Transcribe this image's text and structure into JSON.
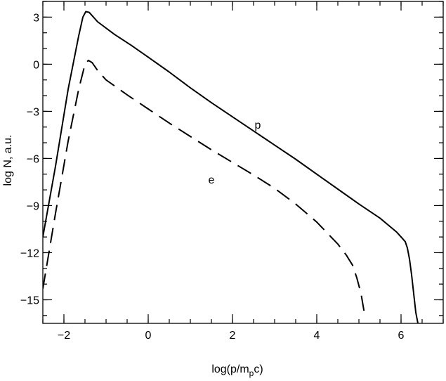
{
  "chart_data": {
    "type": "line",
    "title": "",
    "xlabel": "log(p/m",
    "xlabel_sub": "p",
    "xlabel_tail": "c)",
    "ylabel": "log N,  a.u.",
    "xlim": [
      -2.5,
      7.0
    ],
    "ylim": [
      -16.5,
      4.0
    ],
    "x_ticks": [
      -2,
      0,
      2,
      4,
      6
    ],
    "x_tick_labels": [
      "−2",
      "0",
      "2",
      "4",
      "6"
    ],
    "y_ticks": [
      3,
      0,
      -3,
      -6,
      -9,
      -12,
      -15
    ],
    "y_tick_labels": [
      "3",
      "0",
      "−3",
      "−6",
      "−9",
      "−12",
      "−15"
    ],
    "x_minor_step": 0.5,
    "y_minor_step": 1,
    "grid": false,
    "legend": "none",
    "series": [
      {
        "name": "p",
        "style": "solid",
        "points": [
          [
            -2.5,
            -11.0
          ],
          [
            -2.2,
            -6.5
          ],
          [
            -1.9,
            -1.6
          ],
          [
            -1.65,
            1.8
          ],
          [
            -1.55,
            3.0
          ],
          [
            -1.48,
            3.35
          ],
          [
            -1.4,
            3.3
          ],
          [
            -1.2,
            2.7
          ],
          [
            -0.8,
            1.9
          ],
          [
            -0.4,
            1.2
          ],
          [
            0,
            0.45
          ],
          [
            0.5,
            -0.5
          ],
          [
            1,
            -1.5
          ],
          [
            1.5,
            -2.45
          ],
          [
            2,
            -3.35
          ],
          [
            2.5,
            -4.25
          ],
          [
            3,
            -5.15
          ],
          [
            3.5,
            -6.05
          ],
          [
            4,
            -7.0
          ],
          [
            4.5,
            -7.95
          ],
          [
            5,
            -8.9
          ],
          [
            5.5,
            -9.8
          ],
          [
            5.9,
            -10.7
          ],
          [
            6.0,
            -11.0
          ],
          [
            6.1,
            -11.3
          ],
          [
            6.15,
            -11.7
          ],
          [
            6.2,
            -12.4
          ],
          [
            6.25,
            -13.4
          ],
          [
            6.3,
            -14.6
          ],
          [
            6.35,
            -15.8
          ],
          [
            6.4,
            -16.5
          ]
        ]
      },
      {
        "name": "e",
        "style": "dashed",
        "points": [
          [
            -2.5,
            -14.3
          ],
          [
            -2.2,
            -9.5
          ],
          [
            -1.9,
            -4.9
          ],
          [
            -1.65,
            -1.6
          ],
          [
            -1.5,
            0.0
          ],
          [
            -1.42,
            0.25
          ],
          [
            -1.33,
            0.1
          ],
          [
            -1.2,
            -0.4
          ],
          [
            -1.0,
            -1.0
          ],
          [
            -0.5,
            -1.95
          ],
          [
            0,
            -2.85
          ],
          [
            0.5,
            -3.75
          ],
          [
            1,
            -4.6
          ],
          [
            1.5,
            -5.45
          ],
          [
            2,
            -6.25
          ],
          [
            2.5,
            -7.05
          ],
          [
            3,
            -7.9
          ],
          [
            3.5,
            -8.9
          ],
          [
            4,
            -10.05
          ],
          [
            4.5,
            -11.45
          ],
          [
            4.7,
            -12.15
          ],
          [
            4.85,
            -12.8
          ],
          [
            4.95,
            -13.6
          ],
          [
            5.05,
            -14.6
          ],
          [
            5.12,
            -15.7
          ]
        ]
      }
    ],
    "annotations": [
      {
        "text": "p",
        "x": 2.6,
        "y": -4.1
      },
      {
        "text": "e",
        "x": 1.5,
        "y": -7.6
      }
    ]
  }
}
